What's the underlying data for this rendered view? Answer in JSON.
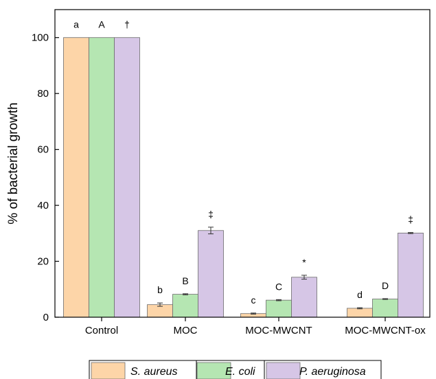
{
  "chart_data": {
    "type": "bar",
    "title": "",
    "xlabel": "",
    "ylabel": "% of bacterial growth",
    "ylim": [
      0,
      110
    ],
    "yticks": [
      0,
      20,
      40,
      60,
      80,
      100
    ],
    "grid": false,
    "legend_position": "bottom",
    "categories": [
      "Control",
      "MOC",
      "MOC-MWCNT",
      "MOC-MWCNT-ox"
    ],
    "series": [
      {
        "name": "S. aureus",
        "color": "#fdd5a8",
        "values": [
          100,
          4.5,
          1.3,
          3.2
        ],
        "errors": [
          0,
          0.6,
          0.2,
          0.2
        ],
        "labels": [
          "a",
          "b",
          "c",
          "d"
        ]
      },
      {
        "name": "E. coli",
        "color": "#b5e6b2",
        "values": [
          100,
          8.2,
          6.1,
          6.5
        ],
        "errors": [
          0,
          0.2,
          0.2,
          0.15
        ],
        "labels": [
          "A",
          "B",
          "C",
          "D"
        ]
      },
      {
        "name": "P. aeruginosa",
        "color": "#d6c6e6",
        "values": [
          100,
          31,
          14.3,
          30.1
        ],
        "errors": [
          0,
          1.2,
          0.7,
          0.2
        ],
        "labels": [
          "†",
          "‡",
          "*",
          "‡"
        ]
      }
    ]
  }
}
